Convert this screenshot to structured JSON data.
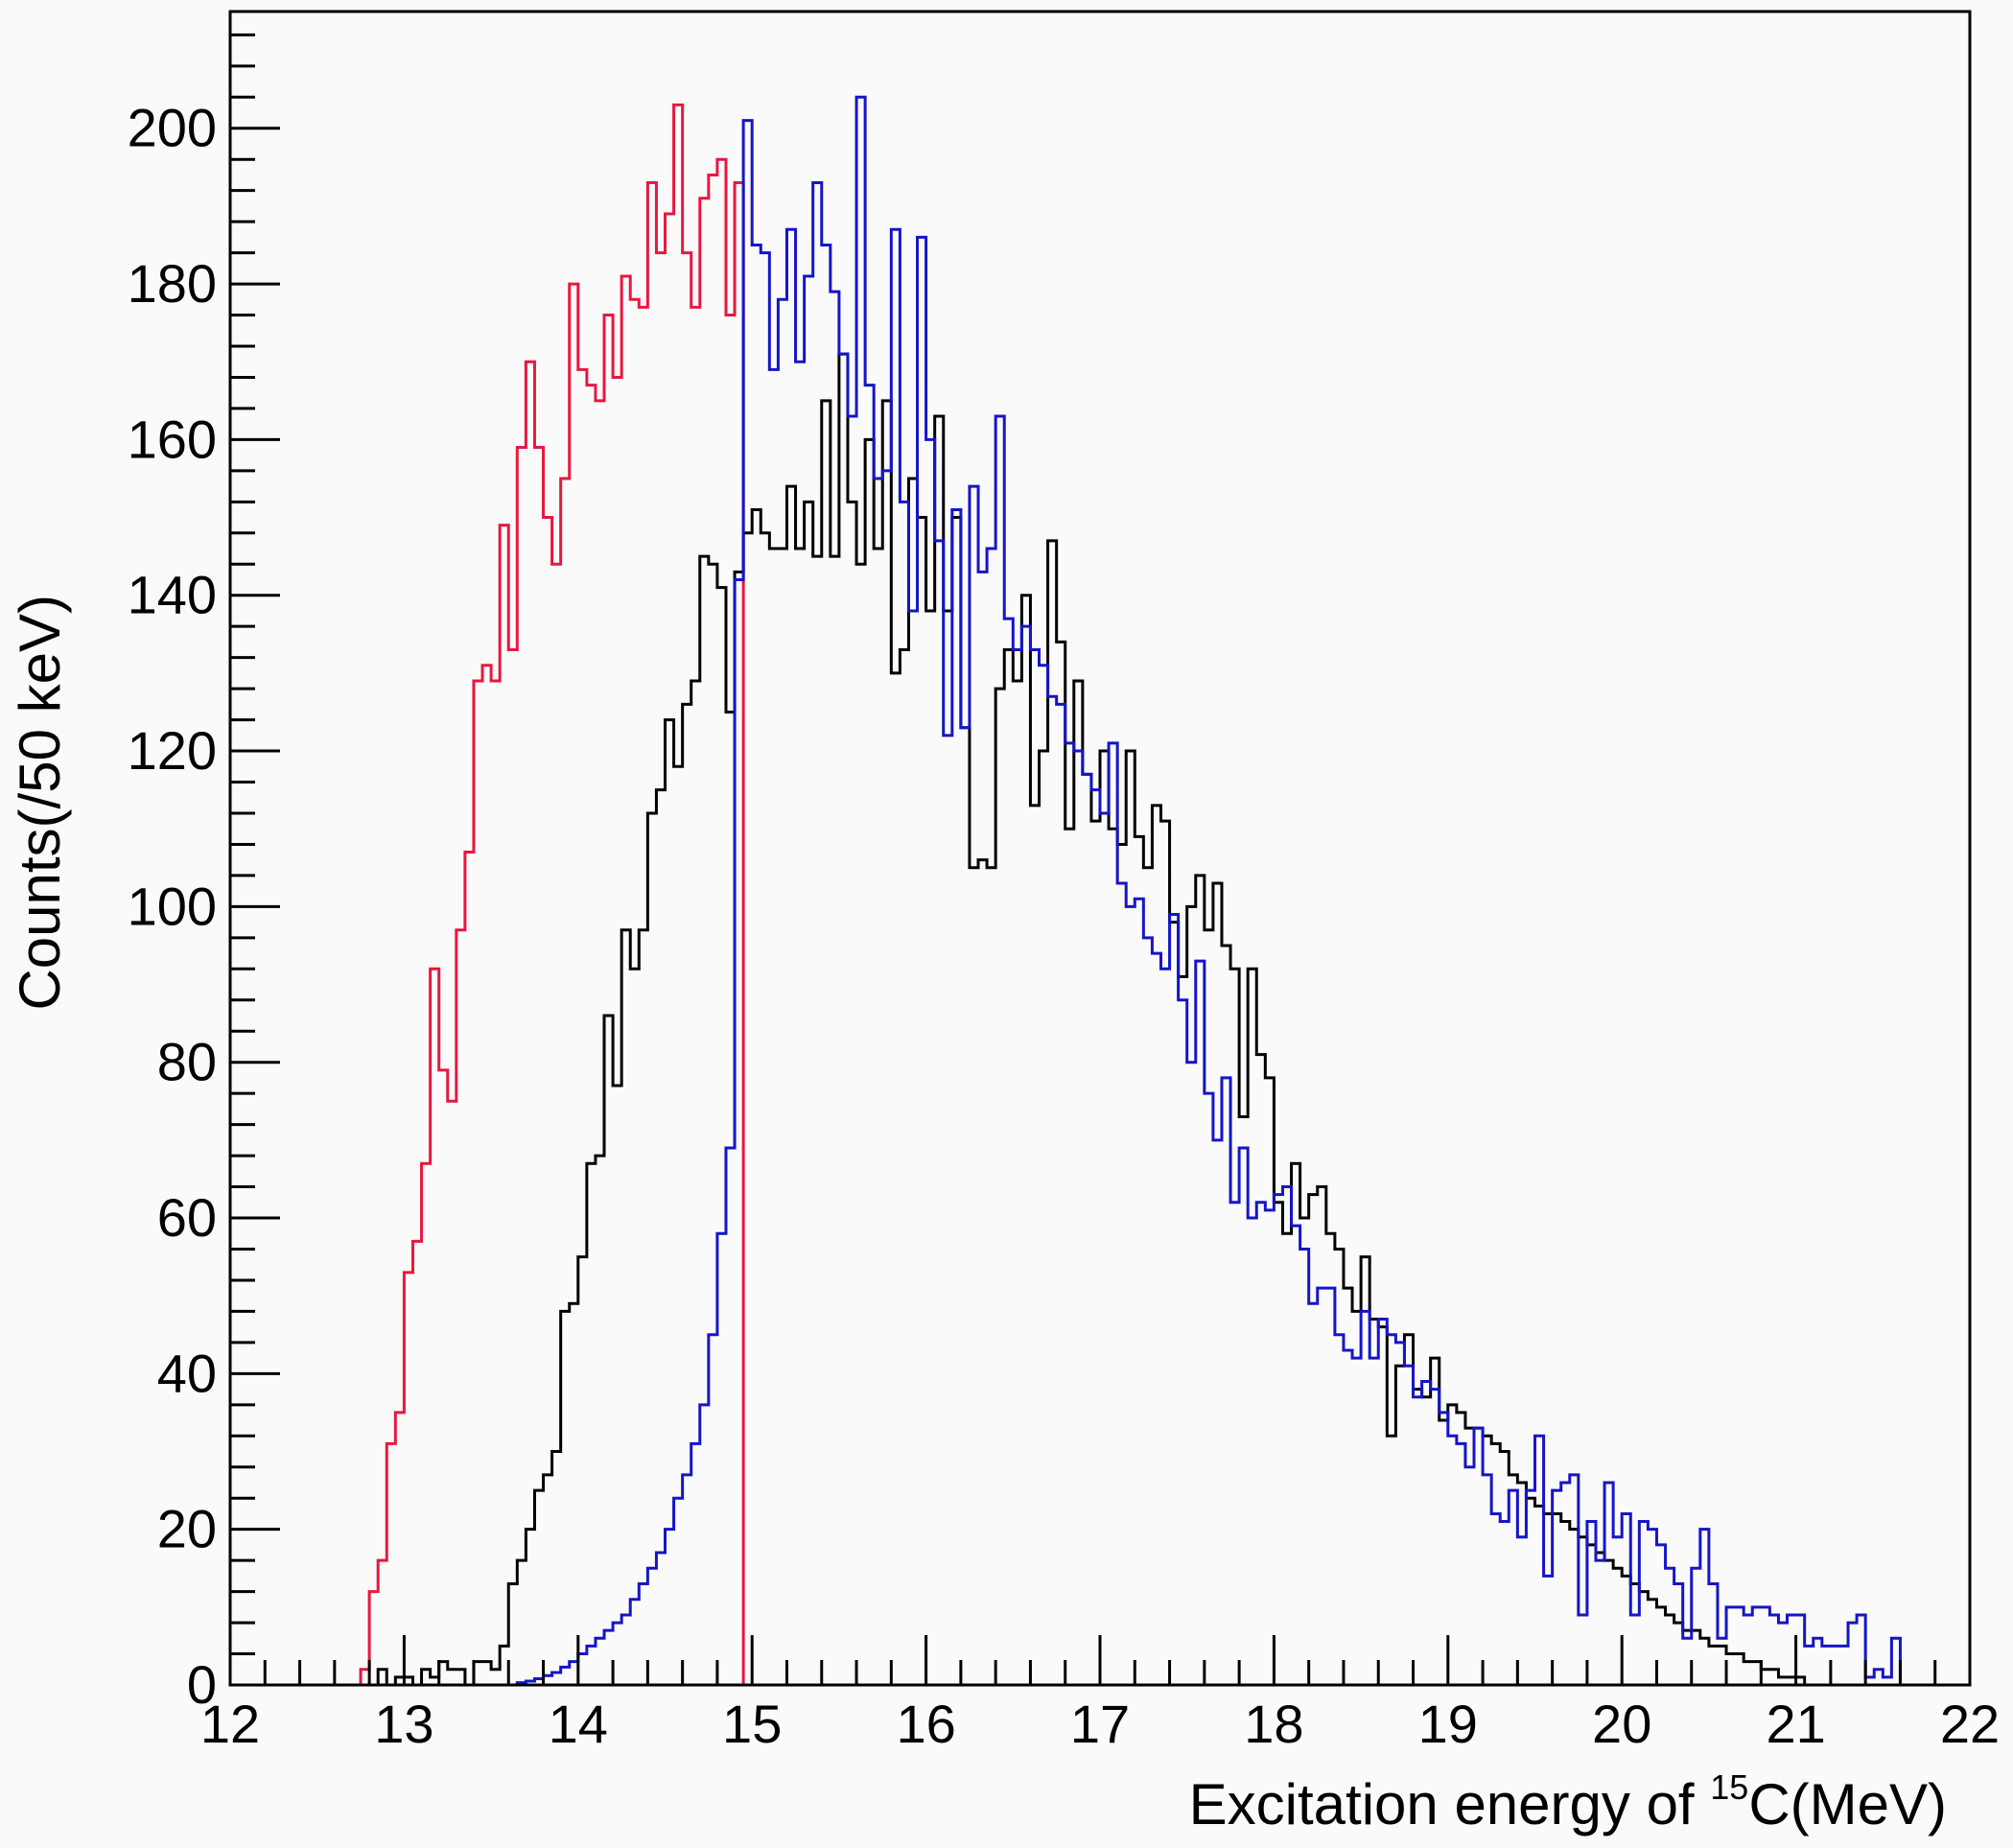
{
  "chart_data": {
    "type": "histogram",
    "title": "",
    "xlabel_prefix": "Excitation energy of ",
    "xlabel_sup": "15",
    "xlabel_suffix": "C(MeV)",
    "ylabel": "Counts(/50 keV)",
    "xlim": [
      12,
      22
    ],
    "ylim": [
      0,
      215
    ],
    "grid": false,
    "x_ticks": [
      "12",
      "13",
      "14",
      "15",
      "16",
      "17",
      "18",
      "19",
      "20",
      "21",
      "22"
    ],
    "y_ticks": [
      "0",
      "20",
      "40",
      "60",
      "80",
      "100",
      "120",
      "140",
      "160",
      "180",
      "200"
    ],
    "bin_width": 0.05,
    "series": [
      {
        "color": "#e8173f",
        "x_start": 12.0,
        "values": [
          0,
          0,
          0,
          0,
          0,
          0,
          0,
          0,
          0,
          0,
          0,
          0,
          0,
          0,
          0,
          2,
          12,
          16,
          31,
          35,
          53,
          57,
          67,
          92,
          79,
          75,
          97,
          107,
          129,
          131,
          129,
          149,
          133,
          159,
          170,
          159,
          150,
          144,
          155,
          180,
          169,
          167,
          165,
          176,
          168,
          181,
          178,
          177,
          193,
          184,
          189,
          203,
          184,
          177,
          191,
          194,
          196,
          176,
          193
        ]
      },
      {
        "color": "#000000",
        "x_start": 12.0,
        "values": [
          0,
          0,
          0,
          0,
          0,
          0,
          0,
          0,
          0,
          0,
          0,
          0,
          0,
          0,
          0,
          0,
          0,
          2,
          0,
          1,
          1,
          0,
          2,
          1,
          3,
          2,
          2,
          0,
          3,
          3,
          2,
          5,
          13,
          16,
          20,
          25,
          27,
          30,
          48,
          49,
          55,
          67,
          68,
          86,
          77,
          97,
          92,
          97,
          112,
          115,
          124,
          118,
          126,
          129,
          145,
          144,
          141,
          125,
          143,
          148,
          151,
          148,
          146,
          146,
          154,
          146,
          152,
          145,
          165,
          145,
          171,
          152,
          144,
          160,
          146,
          165,
          130,
          133,
          155,
          150,
          138,
          163,
          138,
          150,
          123,
          105,
          106,
          105,
          128,
          133,
          129,
          140,
          113,
          120,
          147,
          134,
          110,
          129,
          117,
          111,
          120,
          110,
          108,
          120,
          109,
          105,
          113,
          111,
          98,
          91,
          100,
          104,
          97,
          103,
          95,
          92,
          73,
          92,
          81,
          78,
          62,
          58,
          67,
          60,
          63,
          64,
          58,
          56,
          51,
          48,
          55,
          47,
          46,
          32,
          41,
          45,
          38,
          37,
          42,
          34,
          36,
          35,
          33,
          33,
          32,
          31,
          30,
          27,
          26,
          24,
          23,
          22,
          22,
          21,
          20,
          19,
          18,
          17,
          16,
          15,
          14,
          13,
          12,
          11,
          10,
          9,
          8,
          7,
          7,
          6,
          5,
          5,
          4,
          4,
          3,
          3,
          2,
          2,
          1,
          1,
          1
        ]
      },
      {
        "color": "#1515c8",
        "x_start": 12.0,
        "values": [
          0,
          0,
          0,
          0,
          0,
          0,
          0,
          0,
          0,
          0,
          0,
          0,
          0,
          0,
          0,
          0,
          0,
          0,
          0,
          0,
          0,
          0,
          0,
          0,
          0,
          0,
          0,
          0,
          0,
          0,
          0,
          0,
          0,
          0.3,
          0.5,
          0.8,
          1.2,
          1.6,
          2.3,
          3,
          4,
          5,
          6,
          7,
          8,
          9,
          11,
          13,
          15,
          17,
          20,
          24,
          27,
          31,
          36,
          45,
          58,
          69,
          142,
          201,
          185,
          184,
          169,
          178,
          187,
          170,
          181,
          193,
          185,
          179,
          171,
          163,
          204,
          167,
          155,
          156,
          187,
          152,
          138,
          186,
          160,
          147,
          122,
          151,
          123,
          154,
          143,
          146,
          163,
          137,
          133,
          136,
          133,
          131,
          127,
          126,
          121,
          120,
          117,
          115,
          112,
          121,
          103,
          100,
          101,
          96,
          94,
          92,
          99,
          88,
          80,
          93,
          76,
          70,
          78,
          62,
          69,
          60,
          62,
          61,
          63,
          64,
          59,
          56,
          49,
          51,
          51,
          45,
          43,
          42,
          48,
          42,
          47,
          45,
          44,
          41,
          37,
          39,
          38,
          35,
          32,
          31,
          28,
          33,
          27,
          22,
          21,
          25,
          19,
          25,
          32,
          14,
          25,
          26,
          27,
          9,
          21,
          16,
          26,
          19,
          22,
          9,
          21,
          20,
          18,
          15,
          13,
          6,
          15,
          20,
          13,
          6,
          10,
          10,
          9,
          10,
          10,
          9,
          8,
          9,
          9,
          5,
          6,
          5,
          5,
          5,
          8,
          9,
          1,
          2,
          1,
          6
        ]
      }
    ]
  }
}
